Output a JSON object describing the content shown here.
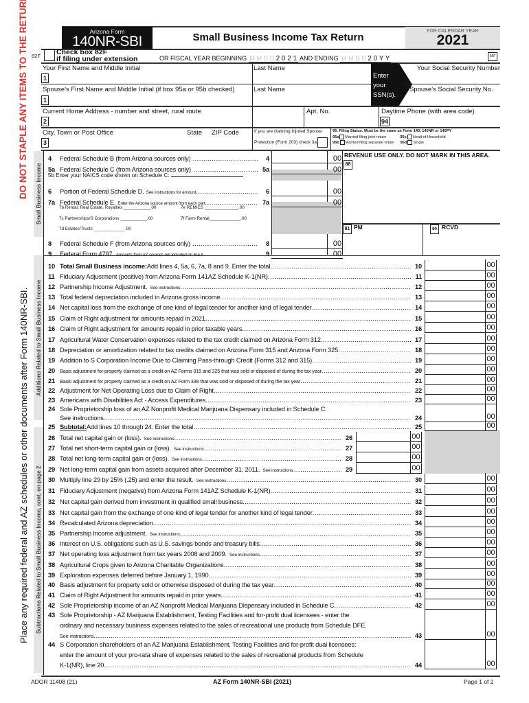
{
  "margin": {
    "staple_warning": "DO NOT STAPLE ANY ITEMS TO THE RETURN.",
    "place_note": "Place any required federal and AZ schedules or other documents after Form 140NR-SBI.",
    "section_income": "Small Business Income",
    "section_additions": "Additions Related to Small Business Income",
    "section_subtractions": "Subtractions Related to Small Business Income, cont. on page 2"
  },
  "header": {
    "form_label": "Arizona Form",
    "form_number": "140NR-SBI",
    "title": "Small Business Income Tax Return",
    "calendar_label": "FOR CALENDAR YEAR",
    "year": "2021"
  },
  "extension": {
    "code": "82F",
    "label_line1": "Check box 82F",
    "label_line2": "if filing under extension",
    "fiscal_label": "OR FISCAL YEAR BEGINNING",
    "begin_placeholder": "M M D D",
    "begin_year": "2 0 2 1",
    "ending_label": "AND ENDING",
    "end_placeholder": "M M D D",
    "end_year": "2 0 Y Y",
    "box66": "66F"
  },
  "fields": {
    "first_name": "Your First Name and Middle Initial",
    "last_name": "Last Name",
    "ssn": "Your Social Security Number",
    "enter_ssn": "Enter your SSN(s).",
    "spouse_first": "Spouse's First Name and Middle Initial (if box 95a or 95b checked)",
    "spouse_last": "Last Name",
    "spouse_ssn": "Spouse's Social Security No.",
    "address": "Current Home Address - number and street, rural route",
    "apt": "Apt. No.",
    "phone": "Daytime Phone (with area code)",
    "phone_box": "94",
    "city": "City, Town or Post Office",
    "state": "State",
    "zip": "ZIP Code",
    "injured_1": "If you are claiming Injured Spouse",
    "injured_2": "Protection (Form 203) check 3a",
    "box1": "1",
    "box2": "2",
    "box3": "3"
  },
  "filing_status": {
    "title": "95. Filing Status. Must be the same as Form 140, 140NR or 140PY",
    "a_code": "95a",
    "a": "Married filing joint return",
    "b_code": "95b",
    "b": "Married filing separate return",
    "c_code": "95c",
    "c": "Head of Household",
    "d_code": "95d",
    "d": "Single"
  },
  "revenue": {
    "notice": "REVENUE USE ONLY. DO NOT MARK IN THIS AREA.",
    "box88": "88",
    "box81": "81",
    "pm": "PM",
    "box80": "80",
    "rcvd": "RCVD"
  },
  "income_lines": [
    {
      "n": "4",
      "text": "Federal Schedule B (from Arizona sources only)",
      "small": "",
      "ln": "4",
      "cents": "00"
    },
    {
      "n": "5a",
      "text": "Federal Schedule C (from Arizona sources only)",
      "small": "",
      "ln": "5a",
      "cents": "00"
    },
    {
      "n": "6",
      "text": "Portion of Federal Schedule D.",
      "small": "See instructions for amount",
      "ln": "6",
      "cents": "00"
    },
    {
      "n": "7a",
      "text": "Federal Schedule E.",
      "small": "Enter the Arizona source amount from each part",
      "ln": "7a",
      "cents": "00"
    },
    {
      "n": "8",
      "text": "Federal Schedule F (from Arizona sources only)",
      "small": "",
      "ln": "8",
      "cents": "00"
    },
    {
      "n": "9",
      "text": "Federal Form 4797.",
      "small": "Amounts from AZ sources not included on line 6",
      "ln": "9",
      "cents": "00"
    }
  ],
  "line5b": "5b Enter your NAICS code shown on Schedule C:",
  "sub7": {
    "b": "7b Rental, Real Estate, Royalties ___________.00",
    "e": "7e REMICS ______________.00",
    "c": "7c Partnerships/S Corporations ___________.00",
    "f": "7f Farm Rental_____________.00",
    "d": "7d Estates/Trusts _____________.00"
  },
  "lines": [
    {
      "n": "10",
      "text": "Total Small Business income:",
      "rest": " Add lines 4, 5a, 6, 7a, 8 and 9.  Enter the total",
      "cents": "00"
    },
    {
      "n": "11",
      "text": "Fiduciary Adjustment (positive) from Arizona Form 141AZ Schedule K-1(NR)",
      "cents": "00"
    },
    {
      "n": "12",
      "text": "Partnership Income Adjustment.",
      "small": "See instructions",
      "cents": "00"
    },
    {
      "n": "13",
      "text": "Total federal depreciation included in Arizona gross income",
      "cents": "00"
    },
    {
      "n": "14",
      "text": "Net capital loss from the exchange of one kind of legal tender for another kind of legal tender",
      "cents": "00"
    },
    {
      "n": "15",
      "text": "Claim of Right adjustment for amounts repaid in 2021",
      "cents": "00"
    },
    {
      "n": "16",
      "text": "Claim of Right adjustment for amounts repaid in prior taxable years",
      "cents": "00"
    },
    {
      "n": "17",
      "text": "Agricultural Water Conservation expenses related to the tax credit claimed on Arizona Form 312",
      "cents": "00"
    },
    {
      "n": "18",
      "text": "Depreciation or amortization related to tax credits claimed on Arizona Form 315 and Arizona Form 325",
      "cents": "00"
    },
    {
      "n": "19",
      "text": "Addition to S Corporation Income Due to Claiming Pass-through Credit (Forms 312 and 315)",
      "cents": "00"
    },
    {
      "n": "20",
      "small": "Basis adjustment for property claimed as a credit on AZ Forms 315 and 325 that was sold or disposed of during the tax year",
      "cents": "00"
    },
    {
      "n": "21",
      "small": "Basis adjustment for property claimed as a credit on AZ Form 338 that was sold or disposed of during the tax year",
      "cents": "00"
    },
    {
      "n": "22",
      "text": "Adjustment for Net Operating Loss due to Claim of Right",
      "cents": "00"
    },
    {
      "n": "23",
      "text": "Americans with Disabilities Act - Access Expenditures",
      "cents": "00"
    },
    {
      "n": "24",
      "pre": "Sole Proprietorship loss of an AZ Nonprofit Medical Marijuana Dispensary included in Schedule C.",
      "text": "See instructions",
      "cents": "00"
    },
    {
      "n": "25",
      "text": "Subtotal:",
      "rest": " Add lines 10 through 24.  Enter the total",
      "cents": "00"
    },
    {
      "n": "26",
      "text": "Total net capital gain or (loss).",
      "small": "See instructions",
      "cents": "00"
    },
    {
      "n": "27",
      "text": "Total net short-term capital gain or (loss).",
      "small": "See instructions",
      "cents": "00"
    },
    {
      "n": "28",
      "text": "Total net long-term capital gain or (loss).",
      "small": "See instructions",
      "cents": "00"
    },
    {
      "n": "29",
      "text": "Net long-term capital gain from assets acquired after December 31, 2011.",
      "small": "See instructions.",
      "cents": "00"
    },
    {
      "n": "30",
      "text": "Multiply line 29 by 25% (.25) and enter the result.",
      "small": "See instructions",
      "cents": "00"
    },
    {
      "n": "31",
      "text": "Fiduciary Adjustment (negative) from Arizona Form 141AZ Schedule K-1(NR)",
      "cents": "00"
    },
    {
      "n": "32",
      "text": "Net capital gain derived from investment in qualified small business",
      "cents": "00"
    },
    {
      "n": "33",
      "text": "Net capital gain from the exchange of one kind of legal tender for another kind of legal tender",
      "cents": "00"
    },
    {
      "n": "34",
      "text": "Recalculated Arizona depreciation",
      "cents": "00"
    },
    {
      "n": "35",
      "text": "Partnership Income adjustment.",
      "small": "See instructions",
      "cents": "00"
    },
    {
      "n": "36",
      "text": "Interest on U.S. obligations such as U.S. savings bonds and treasury bills",
      "cents": "00"
    },
    {
      "n": "37",
      "text": "Net operating loss adjustment from tax years 2008 and 2009.",
      "small": "See instructions",
      "cents": "00"
    },
    {
      "n": "38",
      "text": "Agricultural Crops given to Arizona Charitable Organizations",
      "cents": "00"
    },
    {
      "n": "39",
      "text": "Exploration expenses deferred before January 1, 1990",
      "cents": "00"
    },
    {
      "n": "40",
      "text": "Basis adjustment for property sold or otherwise disposed of during the tax year",
      "cents": "00"
    },
    {
      "n": "41",
      "text": "Claim of Right Adjustment for amounts repaid in prior years",
      "cents": "00"
    },
    {
      "n": "42",
      "text": "Sole Proprietorship income of an AZ Nonprofit Medical Marijuana Dispensary included in Schedule C",
      "cents": "00"
    },
    {
      "n": "43",
      "pre": "Sole Proprietorship - AZ Marijuana Establishment, Testing Facilities and for-profit dual licensees - enter the",
      "pre2": "ordinary and necessary business expenses related to the sales of recreational use products from Schedule DFE.",
      "small": "See instructions",
      "cents": "00"
    },
    {
      "n": "44",
      "pre": "S Corporation shareholders of an AZ Marijuana Establishment, Testing Facilities and for-profit dual licensees:",
      "pre2": "enter the amount of your pro-rata share of expenses related to the sales of recreational products from Schedule",
      "text": "K-1(NR), line 20",
      "cents": "00"
    }
  ],
  "footer": {
    "code": "ADOR 11408 (21)",
    "form": "AZ Form 140NR-SBI (2021)",
    "page": "Page 1 of 2"
  },
  "colors": {
    "warning_red": "#e0312b",
    "shade": "#cfcfcf",
    "black": "#111111"
  }
}
